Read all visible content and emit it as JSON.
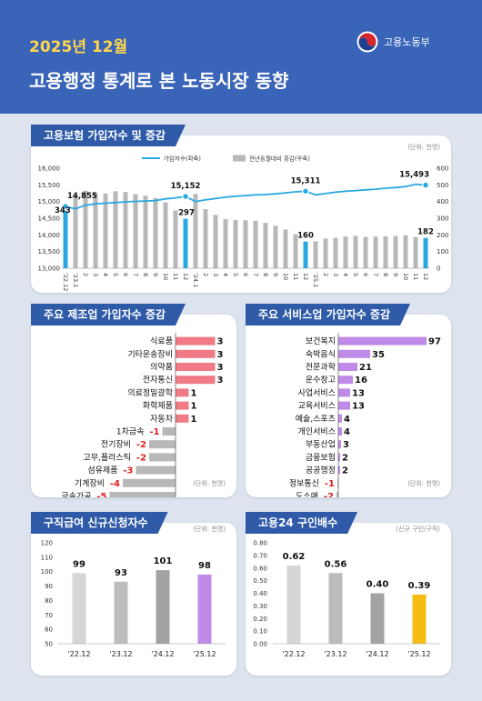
{
  "header": {
    "year_month": "2025년 12월",
    "logo_text": "고용노동부",
    "title": "고용행정 통계로 본 노동시장 동향"
  },
  "colors": {
    "header_bg": "#3a64b8",
    "panel_title_bg": "#2e5aa8",
    "line_blue": "#29a8e0",
    "bar_gray": "#b8b8b8",
    "bar_highlight": "#29a8e0",
    "manufacturing_bar": "#f07a86",
    "service_bar": "#c08ae8",
    "negative_text": "#e02020",
    "year_month_yellow": "#ffd64a"
  },
  "panels": {
    "insurance": {
      "title": "고용보험 가입자수 및 증감",
      "unit": "(단위: 천명)"
    },
    "manufacturing": {
      "title": "주요 제조업 가입자수 증감",
      "unit": "(단위: 천명)"
    },
    "service": {
      "title": "주요 서비스업 가입자수 증감",
      "unit": "(단위: 천명)"
    },
    "jobseek": {
      "title": "구직급여 신규신청자수",
      "unit": "(단위: 천명)"
    },
    "worknet": {
      "title": "고용24 구인배수",
      "unit": "(신규 구인/구직)"
    }
  },
  "chart_data": [
    {
      "type": "line+bar",
      "title": "고용보험 가입자수 및 증감",
      "x": [
        "'22.12",
        "'23.1",
        "2",
        "3",
        "4",
        "5",
        "6",
        "7",
        "8",
        "9",
        "10",
        "11",
        "12",
        "'24.1",
        "2",
        "3",
        "4",
        "5",
        "6",
        "7",
        "8",
        "9",
        "10",
        "11",
        "12",
        "'25.1",
        "2",
        "3",
        "4",
        "5",
        "6",
        "7",
        "8",
        "9",
        "10",
        "11",
        "12"
      ],
      "series": [
        {
          "name": "가입자수(좌축)",
          "type": "line",
          "axis": "left",
          "values": [
            14855,
            14780,
            14890,
            14930,
            14950,
            14970,
            14990,
            15005,
            15015,
            15030,
            15080,
            15110,
            15152,
            15000,
            15050,
            15090,
            15130,
            15160,
            15180,
            15200,
            15210,
            15230,
            15260,
            15290,
            15311,
            15200,
            15240,
            15280,
            15310,
            15330,
            15350,
            15370,
            15400,
            15420,
            15450,
            15520,
            15493
          ]
        },
        {
          "name": "전년동월대비 증감(우축)",
          "type": "bar",
          "axis": "right",
          "values": [
            343,
            440,
            465,
            452,
            448,
            462,
            457,
            444,
            435,
            421,
            395,
            346,
            297,
            446,
            354,
            320,
            295,
            290,
            288,
            285,
            272,
            255,
            232,
            204,
            160,
            162,
            178,
            182,
            190,
            195,
            188,
            190,
            192,
            193,
            198,
            188,
            182
          ]
        }
      ],
      "highlighted_indices": [
        0,
        12,
        24,
        36
      ],
      "annotations": [
        {
          "index": 0,
          "series": "line",
          "text": "14,855"
        },
        {
          "index": 12,
          "series": "line",
          "text": "15,152"
        },
        {
          "index": 24,
          "series": "line",
          "text": "15,311"
        },
        {
          "index": 36,
          "series": "line",
          "text": "15,493"
        },
        {
          "index": 0,
          "series": "bar",
          "text": "343"
        },
        {
          "index": 12,
          "series": "bar",
          "text": "297"
        },
        {
          "index": 24,
          "series": "bar",
          "text": "160"
        },
        {
          "index": 36,
          "series": "bar",
          "text": "182"
        }
      ],
      "left_axis": {
        "ylim": [
          13000,
          16000
        ],
        "ticks": [
          "13,000",
          "13,500",
          "14,000",
          "14,500",
          "15,000",
          "15,500",
          "16,000"
        ]
      },
      "right_axis": {
        "ylim": [
          0,
          600
        ],
        "ticks": [
          "0",
          "100",
          "200",
          "300",
          "400",
          "500",
          "600"
        ]
      },
      "legend_position": "top-right"
    },
    {
      "type": "bar",
      "orientation": "horizontal",
      "title": "주요 제조업 가입자수 증감",
      "categories": [
        "식료품",
        "기타운송장비",
        "의약품",
        "전자통신",
        "의료정밀광학",
        "화학제품",
        "자동차",
        "1차금속",
        "전기장비",
        "고무,플라스틱",
        "섬유제품",
        "기계장비",
        "금속가공"
      ],
      "values": [
        3,
        3,
        3,
        3,
        1,
        1,
        1,
        -1,
        -2,
        -2,
        -3,
        -4,
        -5
      ],
      "labels": [
        "3",
        "3",
        "3",
        "3",
        "1",
        "1",
        "1",
        "-1",
        "-2",
        "-2",
        "-3",
        "-4",
        "-5"
      ]
    },
    {
      "type": "bar",
      "orientation": "horizontal",
      "title": "주요 서비스업 가입자수 증감",
      "categories": [
        "보건복지",
        "숙박음식",
        "전문과학",
        "운수창고",
        "사업서비스",
        "교육서비스",
        "예술,스포츠",
        "개인서비스",
        "부동산업",
        "금융보험",
        "공공행정",
        "정보통신",
        "도소매"
      ],
      "values": [
        97,
        35,
        21,
        16,
        13,
        13,
        4,
        4,
        3,
        2,
        2,
        -1,
        -2
      ],
      "labels": [
        "97",
        "35",
        "21",
        "16",
        "13",
        "13",
        "4",
        "4",
        "3",
        "2",
        "2",
        "-1",
        "-2"
      ]
    },
    {
      "type": "bar",
      "title": "구직급여 신규신청자수",
      "categories": [
        "'22.12",
        "'23.12",
        "'24.12",
        "'25.12"
      ],
      "values": [
        99,
        93,
        101,
        98
      ],
      "labels": [
        "99",
        "93",
        "101",
        "98"
      ],
      "ylim": [
        50,
        120
      ],
      "ticks": [
        "50",
        "60",
        "70",
        "80",
        "90",
        "100",
        "110",
        "120"
      ],
      "bar_colors": [
        "#d6d6d6",
        "#bcbcbc",
        "#a3a3a3",
        "#c08ae8"
      ]
    },
    {
      "type": "bar",
      "title": "고용24 구인배수",
      "categories": [
        "'22.12",
        "'23.12",
        "'24.12",
        "'25.12"
      ],
      "values": [
        0.62,
        0.56,
        0.4,
        0.39
      ],
      "labels": [
        "0.62",
        "0.56",
        "0.40",
        "0.39"
      ],
      "ylim": [
        0,
        0.8
      ],
      "ticks": [
        "0.00",
        "0.10",
        "0.20",
        "0.30",
        "0.40",
        "0.50",
        "0.60",
        "0.70",
        "0.80"
      ],
      "bar_colors": [
        "#d6d6d6",
        "#bcbcbc",
        "#a3a3a3",
        "#f5bd14"
      ]
    }
  ]
}
